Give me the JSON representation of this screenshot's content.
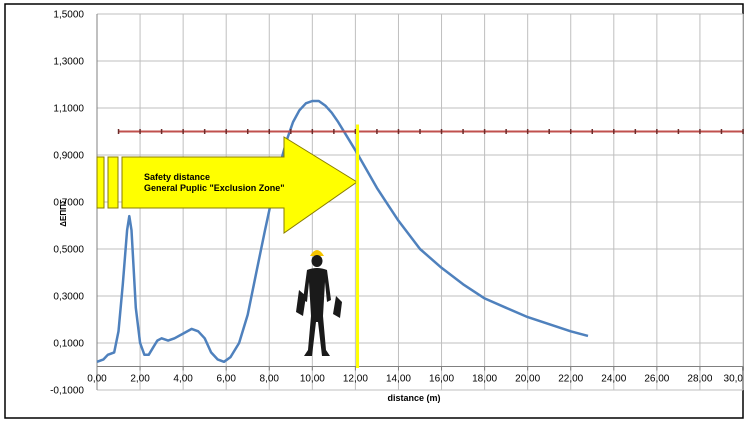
{
  "chart_data": {
    "type": "line",
    "xlabel": "distance (m)",
    "ylabel": "ΔΕΠΠΣ",
    "xlim": [
      0,
      30
    ],
    "ylim": [
      -0.1,
      1.5
    ],
    "x_ticks": [
      "0,00",
      "2,00",
      "4,00",
      "6,00",
      "8,00",
      "10,00",
      "12,00",
      "14,00",
      "16,00",
      "18,00",
      "20,00",
      "22,00",
      "24,00",
      "26,00",
      "28,00",
      "30,0"
    ],
    "x_tick_values": [
      0,
      2,
      4,
      6,
      8,
      10,
      12,
      14,
      16,
      18,
      20,
      22,
      24,
      26,
      28,
      30
    ],
    "y_ticks": [
      "-0,1000",
      "0,1000",
      "0,3000",
      "0,5000",
      "0,7000",
      "0,9000",
      "1,1000",
      "1,3000",
      "1,5000"
    ],
    "y_tick_values": [
      -0.1,
      0.1,
      0.3,
      0.5,
      0.7,
      0.9,
      1.1,
      1.3,
      1.5
    ],
    "grid": true,
    "series": [
      {
        "color": "#4f81bd",
        "x": [
          0.0,
          0.3,
          0.5,
          0.8,
          1.0,
          1.2,
          1.4,
          1.5,
          1.6,
          1.7,
          1.8,
          2.0,
          2.2,
          2.4,
          2.6,
          2.8,
          3.0,
          3.3,
          3.6,
          4.0,
          4.4,
          4.7,
          5.0,
          5.3,
          5.6,
          5.9,
          6.2,
          6.6,
          7.0,
          7.4,
          7.8,
          8.2,
          8.5,
          8.8,
          9.1,
          9.4,
          9.7,
          10.0,
          10.3,
          10.6,
          10.9,
          11.2,
          11.6,
          12.0,
          12.5,
          13.0,
          13.5,
          14.0,
          15.0,
          16.0,
          17.0,
          18.0,
          19.0,
          20.0,
          21.0,
          22.0,
          22.8
        ],
        "y": [
          0.02,
          0.03,
          0.05,
          0.06,
          0.15,
          0.35,
          0.58,
          0.64,
          0.58,
          0.42,
          0.25,
          0.1,
          0.05,
          0.05,
          0.08,
          0.11,
          0.12,
          0.11,
          0.12,
          0.14,
          0.16,
          0.15,
          0.12,
          0.06,
          0.03,
          0.02,
          0.04,
          0.1,
          0.22,
          0.4,
          0.58,
          0.75,
          0.86,
          0.96,
          1.04,
          1.09,
          1.12,
          1.13,
          1.13,
          1.11,
          1.08,
          1.04,
          0.98,
          0.92,
          0.84,
          0.76,
          0.69,
          0.62,
          0.5,
          0.42,
          0.35,
          0.29,
          0.25,
          0.21,
          0.18,
          0.15,
          0.13
        ]
      },
      {
        "color": "#c0504d",
        "x": [
          1,
          2,
          3,
          4,
          5,
          6,
          7,
          8,
          9,
          10,
          11,
          12,
          13,
          14,
          15,
          16,
          17,
          18,
          19,
          20,
          21,
          22,
          23,
          24,
          25,
          26,
          27,
          28,
          29,
          30
        ],
        "y": [
          1.0,
          1.0,
          1.0,
          1.0,
          1.0,
          1.0,
          1.0,
          1.0,
          1.0,
          1.0,
          1.0,
          1.0,
          1.0,
          1.0,
          1.0,
          1.0,
          1.0,
          1.0,
          1.0,
          1.0,
          1.0,
          1.0,
          1.0,
          1.0,
          1.0,
          1.0,
          1.0,
          1.0,
          1.0,
          1.0
        ]
      }
    ],
    "safety_line_x": 12.1,
    "safety_line_color": "#ffff00",
    "arrow_color": "#ffff00",
    "annotation": {
      "line1": "Safety distance",
      "line2": "General Puplic \"Exclusion Zone\""
    }
  }
}
